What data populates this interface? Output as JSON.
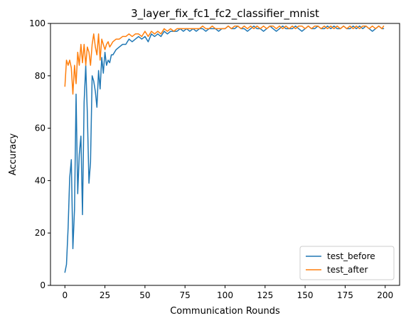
{
  "chart_data": {
    "type": "line",
    "title": "3_layer_fix_fc1_fc2_classifier_mnist",
    "xlabel": "Communication Rounds",
    "ylabel": "Accuracy",
    "xlim": [
      -9,
      209
    ],
    "ylim": [
      0,
      100
    ],
    "xticks": [
      0,
      25,
      50,
      75,
      100,
      125,
      150,
      175,
      200
    ],
    "yticks": [
      0,
      20,
      40,
      60,
      80,
      100
    ],
    "legend_position": "lower-right",
    "grid": false,
    "x": [
      0,
      1,
      2,
      3,
      4,
      5,
      6,
      7,
      8,
      9,
      10,
      11,
      12,
      13,
      14,
      15,
      16,
      17,
      18,
      19,
      20,
      21,
      22,
      23,
      24,
      25,
      26,
      27,
      28,
      29,
      30,
      32,
      34,
      36,
      38,
      40,
      42,
      44,
      46,
      48,
      50,
      52,
      54,
      56,
      58,
      60,
      62,
      64,
      66,
      68,
      70,
      72,
      74,
      76,
      78,
      80,
      82,
      84,
      86,
      88,
      90,
      92,
      94,
      96,
      98,
      100,
      102,
      104,
      106,
      108,
      110,
      112,
      114,
      116,
      118,
      120,
      122,
      124,
      126,
      128,
      130,
      132,
      134,
      136,
      138,
      140,
      142,
      144,
      146,
      148,
      150,
      152,
      154,
      156,
      158,
      160,
      162,
      164,
      166,
      168,
      170,
      172,
      174,
      176,
      178,
      180,
      182,
      184,
      186,
      188,
      190,
      192,
      194,
      196,
      198,
      199
    ],
    "series": [
      {
        "name": "test_before",
        "color": "#1f77b4",
        "values": [
          5,
          8,
          22,
          41,
          48,
          14,
          29,
          73,
          35,
          50,
          57,
          27,
          70,
          84,
          66,
          39,
          47,
          80,
          78,
          74,
          68,
          82,
          75,
          87,
          81,
          89,
          84,
          86,
          85,
          88,
          88,
          90,
          91,
          92,
          92,
          94,
          93,
          94,
          95,
          94,
          95,
          93,
          96,
          95,
          96,
          95,
          97,
          96,
          97,
          97,
          97,
          98,
          97,
          98,
          97,
          98,
          97,
          98,
          98,
          97,
          98,
          98,
          98,
          97,
          98,
          98,
          99,
          98,
          98,
          99,
          98,
          98,
          97,
          98,
          99,
          98,
          98,
          97,
          98,
          99,
          98,
          97,
          98,
          99,
          98,
          98,
          98,
          99,
          98,
          97,
          98,
          99,
          98,
          98,
          99,
          98,
          98,
          99,
          98,
          99,
          98,
          98,
          99,
          98,
          98,
          99,
          98,
          99,
          98,
          99,
          98,
          97,
          98,
          99,
          98,
          98
        ]
      },
      {
        "name": "test_after",
        "color": "#ff7f0e",
        "values": [
          76,
          86,
          84,
          86,
          83,
          73,
          84,
          77,
          89,
          84,
          92,
          85,
          92,
          84,
          91,
          89,
          84,
          92,
          96,
          91,
          88,
          96,
          86,
          94,
          92,
          90,
          92,
          93,
          91,
          92,
          93,
          94,
          94,
          95,
          95,
          96,
          95,
          96,
          96,
          95,
          97,
          95,
          97,
          96,
          97,
          96,
          98,
          97,
          98,
          97,
          98,
          98,
          98,
          98,
          98,
          98,
          98,
          98,
          99,
          98,
          98,
          99,
          98,
          98,
          98,
          98,
          99,
          98,
          99,
          99,
          98,
          99,
          98,
          99,
          98,
          99,
          98,
          99,
          98,
          99,
          99,
          98,
          99,
          98,
          99,
          98,
          99,
          98,
          99,
          99,
          98,
          99,
          98,
          99,
          99,
          98,
          99,
          98,
          99,
          98,
          99,
          98,
          99,
          98,
          99,
          98,
          99,
          98,
          99,
          99,
          98,
          99,
          98,
          99,
          98,
          99
        ]
      }
    ]
  }
}
